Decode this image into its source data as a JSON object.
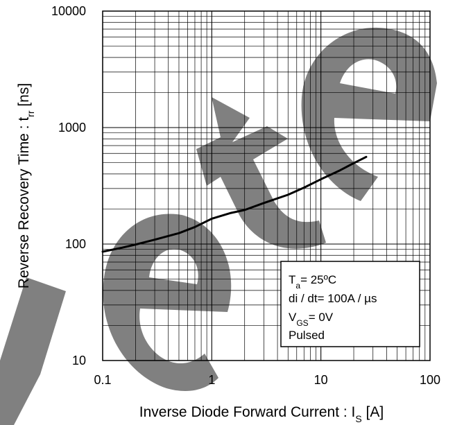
{
  "chart_data": {
    "type": "line",
    "xscale": "log",
    "yscale": "log",
    "xlim": [
      0.1,
      100
    ],
    "ylim": [
      10,
      10000
    ],
    "xticks": [
      0.1,
      1,
      10,
      100
    ],
    "xtick_labels": [
      "0.1",
      "1",
      "10",
      "100"
    ],
    "yticks": [
      10,
      100,
      1000,
      10000
    ],
    "ytick_labels": [
      "10",
      "100",
      "1000",
      "10000"
    ],
    "grid": true,
    "xlabel": {
      "main": "Inverse Diode Forward Current : I",
      "sub": "S",
      "tail": " [A]"
    },
    "ylabel": {
      "main": "Reverse Recovery Time : t",
      "sub": "rr",
      "tail": " [ns]"
    },
    "series": [
      {
        "color": "#000000",
        "points": [
          [
            0.1,
            86
          ],
          [
            0.15,
            93
          ],
          [
            0.2,
            99
          ],
          [
            0.3,
            109
          ],
          [
            0.5,
            124
          ],
          [
            0.7,
            140
          ],
          [
            1,
            165
          ],
          [
            1.5,
            185
          ],
          [
            2,
            196
          ],
          [
            3,
            225
          ],
          [
            5,
            265
          ],
          [
            7,
            305
          ],
          [
            10,
            360
          ],
          [
            15,
            430
          ],
          [
            20,
            495
          ],
          [
            26,
            560
          ]
        ]
      }
    ],
    "legend": {
      "position": "bottom-right",
      "lines": [
        {
          "main": "T",
          "sub": "a",
          "tail": "= 25ºC"
        },
        {
          "main": "di / dt= 100A / µs",
          "sub": "",
          "tail": ""
        },
        {
          "main": "V",
          "sub": "GS",
          "tail": "= 0V"
        },
        {
          "main": "Pulsed",
          "sub": "",
          "tail": ""
        }
      ]
    },
    "watermark": {
      "text": "Obsolete",
      "color": "#808080"
    }
  }
}
